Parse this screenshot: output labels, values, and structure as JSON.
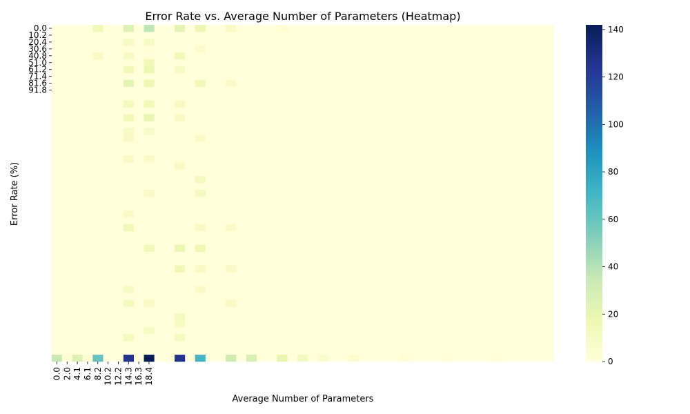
{
  "chart_data": {
    "type": "heatmap",
    "title": "Error Rate vs. Average Number of Parameters (Heatmap)",
    "xlabel": "Average Number of Parameters",
    "ylabel": "Error Rate (%)",
    "x_tick_labels": [
      "0.0",
      "2.0",
      "4.1",
      "6.1",
      "8.2",
      "10.2",
      "12.2",
      "14.3",
      "16.3",
      "18.4"
    ],
    "y_tick_labels": [
      "0.0",
      "10.2",
      "20.4",
      "30.6",
      "40.8",
      "51.0",
      "61.2",
      "71.4",
      "81.6",
      "91.8"
    ],
    "colorbar_ticks": [
      0,
      20,
      40,
      60,
      80,
      100,
      120,
      140
    ],
    "colormap": "YlGnBu",
    "vmin": 0,
    "vmax": 142,
    "n_cols": 49,
    "n_rows": 49,
    "bottom_row_values": [
      {
        "col": 0,
        "value": 35
      },
      {
        "col": 1,
        "value": 2
      },
      {
        "col": 2,
        "value": 25
      },
      {
        "col": 3,
        "value": 4
      },
      {
        "col": 4,
        "value": 60
      },
      {
        "col": 7,
        "value": 125
      },
      {
        "col": 9,
        "value": 142
      },
      {
        "col": 12,
        "value": 125
      },
      {
        "col": 14,
        "value": 70
      },
      {
        "col": 17,
        "value": 32
      },
      {
        "col": 19,
        "value": 27
      },
      {
        "col": 22,
        "value": 20
      },
      {
        "col": 24,
        "value": 12
      },
      {
        "col": 26,
        "value": 6
      },
      {
        "col": 29,
        "value": 5
      },
      {
        "col": 34,
        "value": 2
      },
      {
        "col": 38,
        "value": 1
      },
      {
        "col": 43,
        "value": 1
      }
    ],
    "highlight_cells": [
      {
        "col": 4,
        "row": 0,
        "value": 15
      },
      {
        "col": 7,
        "row": 0,
        "value": 25
      },
      {
        "col": 9,
        "row": 0,
        "value": 38
      },
      {
        "col": 12,
        "row": 0,
        "value": 22
      },
      {
        "col": 14,
        "row": 0,
        "value": 18
      },
      {
        "col": 17,
        "row": 0,
        "value": 10
      },
      {
        "col": 22,
        "row": 0,
        "value": 3
      },
      {
        "col": 7,
        "row": 2,
        "value": 10
      },
      {
        "col": 9,
        "row": 2,
        "value": 8
      },
      {
        "col": 14,
        "row": 3,
        "value": 6
      },
      {
        "col": 12,
        "row": 4,
        "value": 14
      },
      {
        "col": 4,
        "row": 4,
        "value": 8
      },
      {
        "col": 7,
        "row": 4,
        "value": 10
      },
      {
        "col": 9,
        "row": 5,
        "value": 14
      },
      {
        "col": 7,
        "row": 6,
        "value": 14
      },
      {
        "col": 9,
        "row": 6,
        "value": 18
      },
      {
        "col": 12,
        "row": 6,
        "value": 10
      },
      {
        "col": 7,
        "row": 8,
        "value": 22
      },
      {
        "col": 9,
        "row": 8,
        "value": 17
      },
      {
        "col": 14,
        "row": 8,
        "value": 14
      },
      {
        "col": 17,
        "row": 8,
        "value": 8
      },
      {
        "col": 7,
        "row": 11,
        "value": 12
      },
      {
        "col": 9,
        "row": 11,
        "value": 14
      },
      {
        "col": 12,
        "row": 11,
        "value": 10
      },
      {
        "col": 7,
        "row": 13,
        "value": 14
      },
      {
        "col": 9,
        "row": 13,
        "value": 20
      },
      {
        "col": 12,
        "row": 13,
        "value": 10
      },
      {
        "col": 7,
        "row": 15,
        "value": 10
      },
      {
        "col": 9,
        "row": 15,
        "value": 8
      },
      {
        "col": 7,
        "row": 16,
        "value": 9
      },
      {
        "col": 14,
        "row": 16,
        "value": 8
      },
      {
        "col": 7,
        "row": 19,
        "value": 10
      },
      {
        "col": 9,
        "row": 19,
        "value": 8
      },
      {
        "col": 12,
        "row": 20,
        "value": 9
      },
      {
        "col": 14,
        "row": 22,
        "value": 12
      },
      {
        "col": 9,
        "row": 24,
        "value": 10
      },
      {
        "col": 14,
        "row": 24,
        "value": 12
      },
      {
        "col": 7,
        "row": 27,
        "value": 8
      },
      {
        "col": 7,
        "row": 29,
        "value": 14
      },
      {
        "col": 14,
        "row": 29,
        "value": 10
      },
      {
        "col": 17,
        "row": 29,
        "value": 8
      },
      {
        "col": 9,
        "row": 32,
        "value": 14
      },
      {
        "col": 12,
        "row": 32,
        "value": 18
      },
      {
        "col": 14,
        "row": 32,
        "value": 17
      },
      {
        "col": 12,
        "row": 35,
        "value": 16
      },
      {
        "col": 14,
        "row": 35,
        "value": 10
      },
      {
        "col": 17,
        "row": 35,
        "value": 8
      },
      {
        "col": 7,
        "row": 38,
        "value": 10
      },
      {
        "col": 14,
        "row": 38,
        "value": 8
      },
      {
        "col": 7,
        "row": 40,
        "value": 12
      },
      {
        "col": 9,
        "row": 40,
        "value": 10
      },
      {
        "col": 17,
        "row": 40,
        "value": 10
      },
      {
        "col": 12,
        "row": 42,
        "value": 12
      },
      {
        "col": 12,
        "row": 43,
        "value": 10
      },
      {
        "col": 9,
        "row": 44,
        "value": 10
      },
      {
        "col": 7,
        "row": 45,
        "value": 12
      },
      {
        "col": 12,
        "row": 45,
        "value": 12
      }
    ],
    "grid": false,
    "legend": "colorbar-right"
  }
}
